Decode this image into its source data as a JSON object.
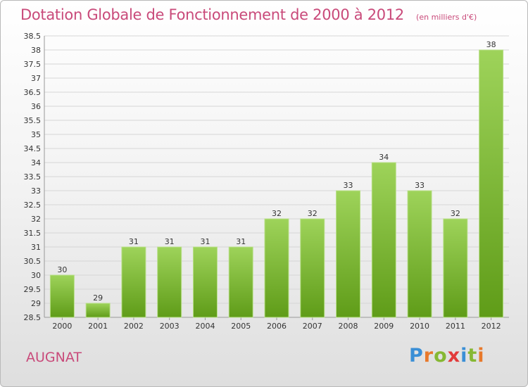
{
  "header": {
    "title": "Dotation Globale de Fonctionnement de 2000 à 2012",
    "unit": "(en milliers d'€)"
  },
  "footer": {
    "place": "AUGNAT",
    "brand": "Proxiti",
    "brand_colors": [
      "#3a8fd6",
      "#e8792b",
      "#86b833",
      "#e23a3a",
      "#3a8fd6",
      "#86b833",
      "#e8792b"
    ]
  },
  "colors": {
    "bar_top": "#9ed35a",
    "bar_bottom": "#5f9c18",
    "title": "#c94a7a",
    "grid": "#d6d6d6"
  },
  "chart_data": {
    "type": "bar",
    "title": "Dotation Globale de Fonctionnement de 2000 à 2012",
    "subtitle": "(en milliers d'€)",
    "categories": [
      "2000",
      "2001",
      "2002",
      "2003",
      "2004",
      "2005",
      "2006",
      "2007",
      "2008",
      "2009",
      "2010",
      "2011",
      "2012"
    ],
    "values": [
      30,
      29,
      31,
      31,
      31,
      31,
      32,
      32,
      33,
      34,
      33,
      32,
      38
    ],
    "xlabel": "",
    "ylabel": "",
    "ylim": [
      28.5,
      38.5
    ],
    "yticks": [
      "28.5",
      "29",
      "29.5",
      "30",
      "30.5",
      "31",
      "31.5",
      "32",
      "32.5",
      "33",
      "33.5",
      "34",
      "34.5",
      "35",
      "35.5",
      "36",
      "36.5",
      "37",
      "37.5",
      "38",
      "38.5"
    ],
    "grid": true,
    "legend": "none"
  }
}
